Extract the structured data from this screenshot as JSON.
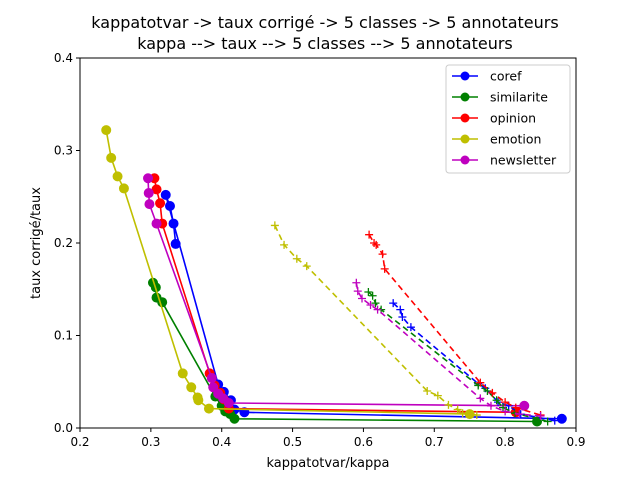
{
  "chart_data": {
    "type": "line",
    "title": "kappatotvar -> taux corrigé -> 5 classes -> 5 annotateurs",
    "subtitle": "kappa --> taux --> 5 classes --> 5 annotateurs",
    "xlabel": "kappatotvar/kappa",
    "ylabel": "taux corrigé/taux",
    "xlim": [
      0.2,
      0.9
    ],
    "ylim": [
      0.0,
      0.4
    ],
    "xticks": [
      "0.2",
      "0.3",
      "0.4",
      "0.5",
      "0.6",
      "0.7",
      "0.8",
      "0.9"
    ],
    "yticks": [
      "0.0",
      "0.1",
      "0.2",
      "0.3",
      "0.4"
    ],
    "grid": false,
    "legend_position": "upper right",
    "series": [
      {
        "name": "coref",
        "color": "#0000ff",
        "marker": "o",
        "linestyle": "solid",
        "points": [
          [
            0.335,
            0.199
          ],
          [
            0.332,
            0.221
          ],
          [
            0.327,
            0.24
          ],
          [
            0.321,
            0.252
          ],
          [
            0.395,
            0.047
          ],
          [
            0.403,
            0.039
          ],
          [
            0.413,
            0.03
          ],
          [
            0.418,
            0.02
          ],
          [
            0.432,
            0.017
          ],
          [
            0.88,
            0.01
          ]
        ]
      },
      {
        "name": "similarite",
        "color": "#008000",
        "marker": "o",
        "linestyle": "solid",
        "points": [
          [
            0.303,
            0.157
          ],
          [
            0.307,
            0.152
          ],
          [
            0.308,
            0.141
          ],
          [
            0.316,
            0.136
          ],
          [
            0.391,
            0.034
          ],
          [
            0.4,
            0.024
          ],
          [
            0.405,
            0.018
          ],
          [
            0.412,
            0.015
          ],
          [
            0.418,
            0.01
          ],
          [
            0.845,
            0.007
          ]
        ]
      },
      {
        "name": "opinion",
        "color": "#ff0000",
        "marker": "o",
        "linestyle": "solid",
        "points": [
          [
            0.305,
            0.27
          ],
          [
            0.308,
            0.258
          ],
          [
            0.313,
            0.243
          ],
          [
            0.316,
            0.221
          ],
          [
            0.383,
            0.059
          ],
          [
            0.39,
            0.046
          ],
          [
            0.398,
            0.038
          ],
          [
            0.403,
            0.031
          ],
          [
            0.41,
            0.021
          ],
          [
            0.815,
            0.017
          ]
        ]
      },
      {
        "name": "emotion",
        "color": "#bfbf00",
        "marker": "o",
        "linestyle": "solid",
        "points": [
          [
            0.237,
            0.322
          ],
          [
            0.244,
            0.292
          ],
          [
            0.253,
            0.272
          ],
          [
            0.262,
            0.259
          ],
          [
            0.345,
            0.059
          ],
          [
            0.357,
            0.044
          ],
          [
            0.366,
            0.033
          ],
          [
            0.367,
            0.03
          ],
          [
            0.382,
            0.021
          ],
          [
            0.75,
            0.015
          ]
        ]
      },
      {
        "name": "newsletter",
        "color": "#bf00bf",
        "marker": "o",
        "linestyle": "solid",
        "points": [
          [
            0.296,
            0.27
          ],
          [
            0.297,
            0.254
          ],
          [
            0.298,
            0.242
          ],
          [
            0.308,
            0.221
          ],
          [
            0.386,
            0.054
          ],
          [
            0.388,
            0.044
          ],
          [
            0.395,
            0.037
          ],
          [
            0.402,
            0.032
          ],
          [
            0.41,
            0.027
          ],
          [
            0.827,
            0.024
          ]
        ]
      },
      {
        "color": "#0000ff",
        "marker": "+",
        "linestyle": "dashed",
        "points": [
          [
            0.642,
            0.135
          ],
          [
            0.652,
            0.128
          ],
          [
            0.655,
            0.12
          ],
          [
            0.667,
            0.109
          ],
          [
            0.762,
            0.048
          ],
          [
            0.772,
            0.043
          ],
          [
            0.79,
            0.028
          ],
          [
            0.805,
            0.024
          ],
          [
            0.822,
            0.015
          ],
          [
            0.87,
            0.008
          ]
        ]
      },
      {
        "color": "#008000",
        "marker": "+",
        "linestyle": "dashed",
        "points": [
          [
            0.607,
            0.147
          ],
          [
            0.613,
            0.143
          ],
          [
            0.617,
            0.135
          ],
          [
            0.625,
            0.128
          ],
          [
            0.762,
            0.046
          ],
          [
            0.775,
            0.04
          ],
          [
            0.788,
            0.03
          ],
          [
            0.797,
            0.022
          ],
          [
            0.814,
            0.016
          ],
          [
            0.86,
            0.007
          ]
        ]
      },
      {
        "color": "#ff0000",
        "marker": "+",
        "linestyle": "dashed",
        "points": [
          [
            0.608,
            0.209
          ],
          [
            0.615,
            0.2
          ],
          [
            0.618,
            0.198
          ],
          [
            0.627,
            0.188
          ],
          [
            0.63,
            0.172
          ],
          [
            0.765,
            0.049
          ],
          [
            0.782,
            0.038
          ],
          [
            0.8,
            0.028
          ],
          [
            0.815,
            0.022
          ],
          [
            0.85,
            0.014
          ]
        ]
      },
      {
        "color": "#bfbf00",
        "marker": "+",
        "linestyle": "dashed",
        "points": [
          [
            0.475,
            0.219
          ],
          [
            0.488,
            0.198
          ],
          [
            0.506,
            0.183
          ],
          [
            0.52,
            0.175
          ],
          [
            0.69,
            0.04
          ],
          [
            0.705,
            0.035
          ],
          [
            0.72,
            0.025
          ],
          [
            0.733,
            0.02
          ],
          [
            0.74,
            0.016
          ],
          [
            0.76,
            0.014
          ]
        ]
      },
      {
        "color": "#bf00bf",
        "marker": "+",
        "linestyle": "dashed",
        "points": [
          [
            0.59,
            0.157
          ],
          [
            0.592,
            0.148
          ],
          [
            0.598,
            0.14
          ],
          [
            0.61,
            0.133
          ],
          [
            0.62,
            0.128
          ],
          [
            0.765,
            0.032
          ],
          [
            0.78,
            0.024
          ],
          [
            0.8,
            0.018
          ],
          [
            0.82,
            0.015
          ],
          [
            0.85,
            0.013
          ]
        ]
      }
    ]
  }
}
